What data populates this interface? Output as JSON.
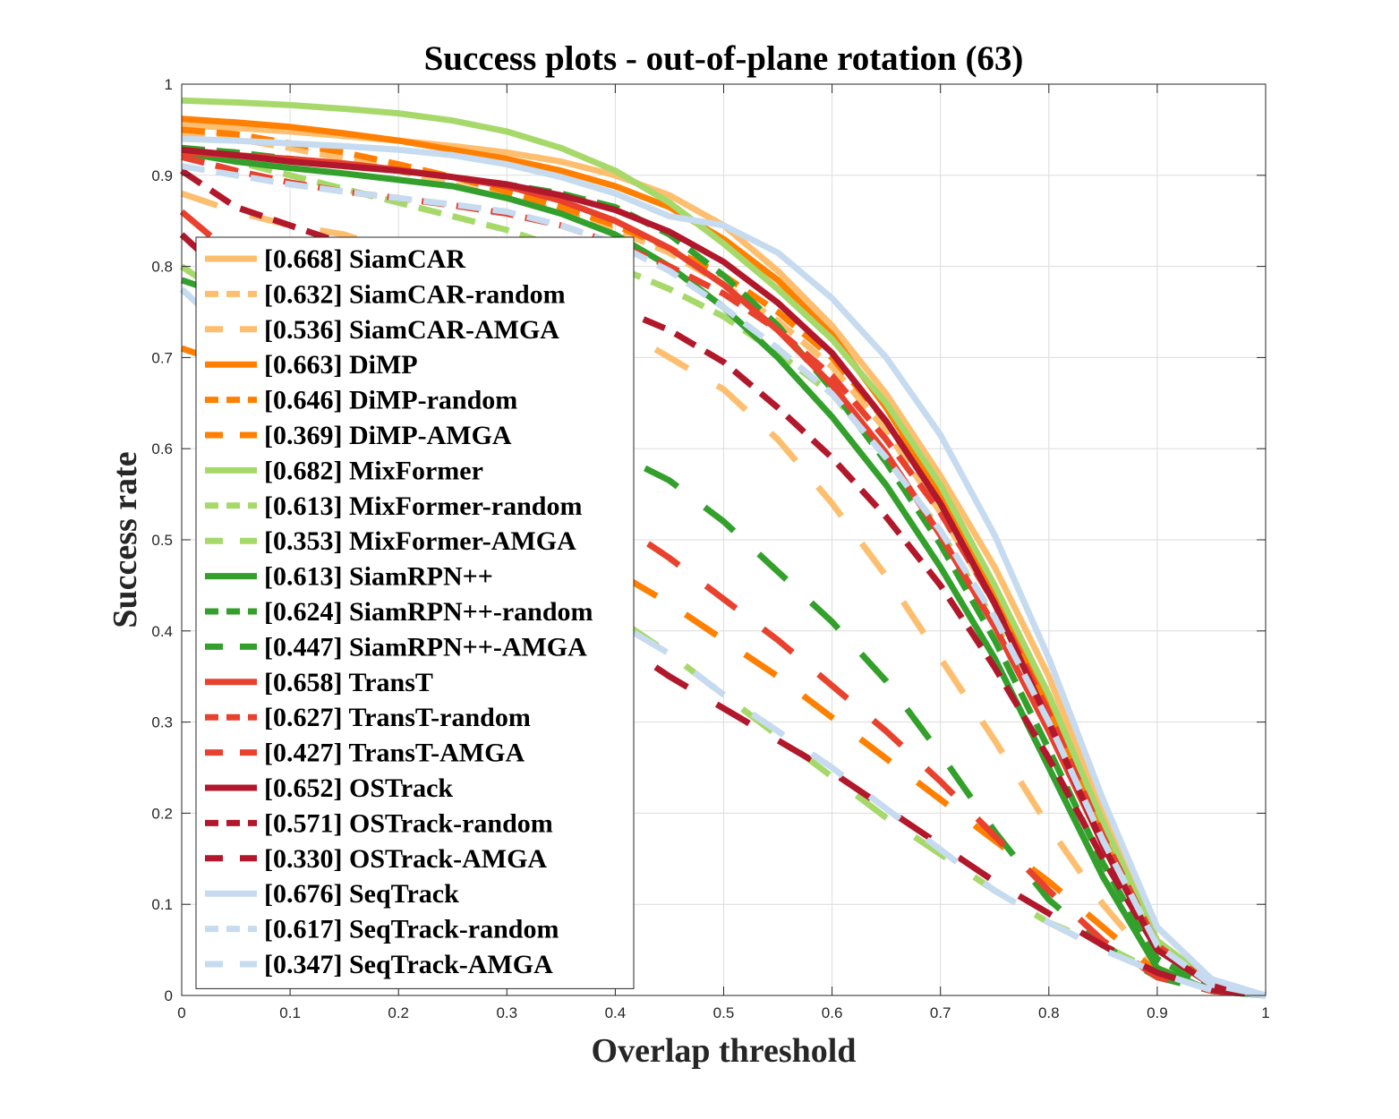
{
  "chart_data": {
    "type": "line",
    "title": "Success plots - out-of-plane rotation (63)",
    "xlabel": "Overlap threshold",
    "ylabel": "Success rate",
    "xlim": [
      0,
      1
    ],
    "ylim": [
      0,
      1
    ],
    "xticks": [
      "0",
      "0.1",
      "0.2",
      "0.3",
      "0.4",
      "0.5",
      "0.6",
      "0.7",
      "0.8",
      "0.9",
      "1"
    ],
    "yticks": [
      "0",
      "0.1",
      "0.2",
      "0.3",
      "0.4",
      "0.5",
      "0.6",
      "0.7",
      "0.8",
      "0.9",
      "1"
    ],
    "grid": true,
    "legend_position": "left",
    "x": [
      0,
      0.05,
      0.1,
      0.15,
      0.2,
      0.25,
      0.3,
      0.35,
      0.4,
      0.45,
      0.5,
      0.55,
      0.6,
      0.65,
      0.7,
      0.75,
      0.8,
      0.85,
      0.9,
      0.95,
      1.0
    ],
    "series": [
      {
        "name": "[0.668] SiamCAR",
        "color": "#FDBF6F",
        "style": "solid",
        "values": [
          0.955,
          0.952,
          0.948,
          0.943,
          0.938,
          0.932,
          0.925,
          0.915,
          0.9,
          0.878,
          0.845,
          0.795,
          0.735,
          0.66,
          0.57,
          0.47,
          0.35,
          0.2,
          0.06,
          0.015,
          0.0
        ]
      },
      {
        "name": "[0.632] SiamCAR-random",
        "color": "#FDBF6F",
        "style": "dash",
        "values": [
          0.945,
          0.94,
          0.93,
          0.918,
          0.905,
          0.89,
          0.875,
          0.86,
          0.84,
          0.815,
          0.78,
          0.74,
          0.69,
          0.62,
          0.53,
          0.43,
          0.31,
          0.18,
          0.05,
          0.012,
          0.0
        ]
      },
      {
        "name": "[0.536] SiamCAR-AMGA",
        "color": "#FDBF6F",
        "style": "longdash",
        "values": [
          0.88,
          0.86,
          0.845,
          0.835,
          0.815,
          0.8,
          0.785,
          0.76,
          0.735,
          0.7,
          0.665,
          0.61,
          0.54,
          0.46,
          0.37,
          0.28,
          0.185,
          0.1,
          0.03,
          0.008,
          0.0
        ]
      },
      {
        "name": "[0.663] DiMP",
        "color": "#FF7F00",
        "style": "solid",
        "values": [
          0.962,
          0.958,
          0.953,
          0.946,
          0.938,
          0.928,
          0.918,
          0.905,
          0.888,
          0.865,
          0.83,
          0.785,
          0.725,
          0.645,
          0.55,
          0.445,
          0.32,
          0.175,
          0.055,
          0.012,
          0.0
        ]
      },
      {
        "name": "[0.646] DiMP-random",
        "color": "#FF7F00",
        "style": "dash",
        "values": [
          0.95,
          0.945,
          0.935,
          0.925,
          0.912,
          0.898,
          0.882,
          0.865,
          0.845,
          0.82,
          0.79,
          0.75,
          0.7,
          0.63,
          0.545,
          0.44,
          0.315,
          0.175,
          0.055,
          0.012,
          0.0
        ]
      },
      {
        "name": "[0.369] DiMP-AMGA",
        "color": "#FF7F00",
        "style": "longdash",
        "values": [
          0.71,
          0.69,
          0.67,
          0.645,
          0.615,
          0.585,
          0.545,
          0.5,
          0.465,
          0.43,
          0.39,
          0.35,
          0.305,
          0.26,
          0.215,
          0.17,
          0.125,
          0.075,
          0.025,
          0.006,
          0.0
        ]
      },
      {
        "name": "[0.682] MixFormer",
        "color": "#A6D96A",
        "style": "solid",
        "values": [
          0.982,
          0.98,
          0.977,
          0.973,
          0.968,
          0.96,
          0.948,
          0.93,
          0.905,
          0.87,
          0.825,
          0.775,
          0.72,
          0.65,
          0.56,
          0.45,
          0.33,
          0.19,
          0.06,
          0.015,
          0.0
        ]
      },
      {
        "name": "[0.613] MixFormer-random",
        "color": "#A6D96A",
        "style": "dash",
        "values": [
          0.93,
          0.915,
          0.9,
          0.885,
          0.87,
          0.855,
          0.84,
          0.82,
          0.8,
          0.775,
          0.745,
          0.705,
          0.66,
          0.59,
          0.51,
          0.41,
          0.295,
          0.165,
          0.05,
          0.012,
          0.0
        ]
      },
      {
        "name": "[0.353] MixFormer-AMGA",
        "color": "#A6D96A",
        "style": "longdash",
        "values": [
          0.8,
          0.76,
          0.72,
          0.665,
          0.605,
          0.55,
          0.5,
          0.455,
          0.415,
          0.375,
          0.33,
          0.285,
          0.24,
          0.195,
          0.155,
          0.115,
          0.08,
          0.055,
          0.025,
          0.006,
          0.0
        ]
      },
      {
        "name": "[0.613] SiamRPN++",
        "color": "#33A02C",
        "style": "solid",
        "values": [
          0.925,
          0.915,
          0.908,
          0.902,
          0.895,
          0.888,
          0.875,
          0.858,
          0.835,
          0.8,
          0.755,
          0.7,
          0.635,
          0.56,
          0.47,
          0.37,
          0.25,
          0.13,
          0.03,
          0.005,
          0.0
        ]
      },
      {
        "name": "[0.624] SiamRPN++-random",
        "color": "#33A02C",
        "style": "dash",
        "values": [
          0.93,
          0.925,
          0.918,
          0.912,
          0.905,
          0.898,
          0.89,
          0.88,
          0.865,
          0.835,
          0.79,
          0.735,
          0.665,
          0.585,
          0.495,
          0.39,
          0.27,
          0.145,
          0.04,
          0.008,
          0.0
        ]
      },
      {
        "name": "[0.447] SiamRPN++-AMGA",
        "color": "#33A02C",
        "style": "longdash",
        "values": [
          0.785,
          0.765,
          0.745,
          0.72,
          0.695,
          0.665,
          0.635,
          0.61,
          0.595,
          0.565,
          0.52,
          0.465,
          0.41,
          0.345,
          0.265,
          0.18,
          0.105,
          0.055,
          0.02,
          0.005,
          0.0
        ]
      },
      {
        "name": "[0.658] TransT",
        "color": "#E8412E",
        "style": "solid",
        "values": [
          0.925,
          0.922,
          0.918,
          0.913,
          0.906,
          0.898,
          0.888,
          0.872,
          0.85,
          0.82,
          0.78,
          0.73,
          0.67,
          0.595,
          0.505,
          0.405,
          0.29,
          0.165,
          0.05,
          0.012,
          0.0
        ]
      },
      {
        "name": "[0.627] TransT-random",
        "color": "#E8412E",
        "style": "dash",
        "values": [
          0.92,
          0.905,
          0.892,
          0.882,
          0.875,
          0.867,
          0.858,
          0.845,
          0.825,
          0.8,
          0.77,
          0.73,
          0.68,
          0.61,
          0.53,
          0.43,
          0.31,
          0.175,
          0.055,
          0.012,
          0.0
        ]
      },
      {
        "name": "[0.427] TransT-AMGA",
        "color": "#E8412E",
        "style": "longdash",
        "values": [
          0.86,
          0.81,
          0.77,
          0.725,
          0.68,
          0.64,
          0.6,
          0.56,
          0.52,
          0.48,
          0.435,
          0.39,
          0.34,
          0.29,
          0.235,
          0.175,
          0.115,
          0.06,
          0.02,
          0.005,
          0.0
        ]
      },
      {
        "name": "[0.652] OSTrack",
        "color": "#B2182B",
        "style": "solid",
        "values": [
          0.928,
          0.922,
          0.915,
          0.91,
          0.905,
          0.898,
          0.89,
          0.878,
          0.862,
          0.838,
          0.805,
          0.76,
          0.705,
          0.63,
          0.54,
          0.43,
          0.3,
          0.165,
          0.05,
          0.012,
          0.0
        ]
      },
      {
        "name": "[0.571] OSTrack-random",
        "color": "#B2182B",
        "style": "dash",
        "values": [
          0.905,
          0.865,
          0.845,
          0.825,
          0.81,
          0.795,
          0.78,
          0.77,
          0.755,
          0.73,
          0.695,
          0.645,
          0.59,
          0.525,
          0.45,
          0.36,
          0.26,
          0.15,
          0.05,
          0.012,
          0.0
        ]
      },
      {
        "name": "[0.330] OSTrack-AMGA",
        "color": "#B2182B",
        "style": "longdash",
        "values": [
          0.835,
          0.78,
          0.72,
          0.655,
          0.59,
          0.53,
          0.47,
          0.43,
          0.39,
          0.35,
          0.315,
          0.28,
          0.245,
          0.205,
          0.165,
          0.125,
          0.09,
          0.055,
          0.025,
          0.006,
          0.0
        ]
      },
      {
        "name": "[0.676] SeqTrack",
        "color": "#C6DBEF",
        "style": "solid",
        "values": [
          0.94,
          0.938,
          0.935,
          0.932,
          0.928,
          0.922,
          0.912,
          0.898,
          0.88,
          0.855,
          0.845,
          0.815,
          0.765,
          0.7,
          0.615,
          0.505,
          0.37,
          0.215,
          0.075,
          0.018,
          0.0
        ]
      },
      {
        "name": "[0.617] SeqTrack-random",
        "color": "#C6DBEF",
        "style": "dash",
        "values": [
          0.91,
          0.9,
          0.89,
          0.882,
          0.875,
          0.868,
          0.86,
          0.845,
          0.825,
          0.795,
          0.755,
          0.71,
          0.66,
          0.59,
          0.51,
          0.415,
          0.3,
          0.17,
          0.055,
          0.012,
          0.0
        ]
      },
      {
        "name": "[0.347] SeqTrack-AMGA",
        "color": "#C6DBEF",
        "style": "longdash",
        "values": [
          0.775,
          0.72,
          0.67,
          0.615,
          0.56,
          0.51,
          0.465,
          0.435,
          0.41,
          0.375,
          0.33,
          0.29,
          0.25,
          0.205,
          0.16,
          0.115,
          0.08,
          0.05,
          0.025,
          0.006,
          0.0
        ]
      }
    ]
  }
}
